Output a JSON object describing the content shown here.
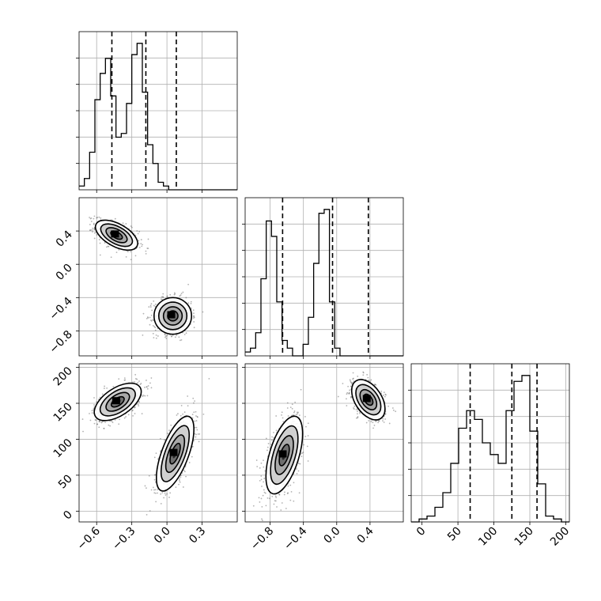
{
  "chart_data": {
    "type": "corner",
    "grid": true,
    "parameters": [
      {
        "range": [
          -0.75,
          0.6
        ],
        "ticks": [
          "−0.6",
          "−0.3",
          "0.0",
          "0.3"
        ],
        "tick_values": [
          -0.6,
          -0.3,
          0.0,
          0.3
        ],
        "quantiles": [
          -0.47,
          -0.18,
          0.08
        ],
        "hist": {
          "bin_start": -0.75,
          "bin_width": 0.045,
          "counts": [
            1,
            3,
            10,
            24,
            31,
            35,
            25,
            14,
            15,
            23,
            36,
            39,
            26,
            12,
            7,
            2,
            1,
            0,
            0,
            0,
            0,
            0,
            0,
            0,
            0,
            0,
            0,
            0,
            0,
            0
          ]
        }
      },
      {
        "range": [
          -1.1,
          0.8
        ],
        "ticks": [
          "−0.8",
          "−0.4",
          "0.0",
          "0.4"
        ],
        "tick_values": [
          -0.8,
          -0.4,
          0.0,
          0.4
        ],
        "quantiles": [
          -0.65,
          -0.05,
          0.38
        ],
        "hist": {
          "bin_start": -1.1,
          "bin_width": 0.0633,
          "counts": [
            1,
            2,
            6,
            20,
            35,
            31,
            14,
            4,
            2,
            0,
            0,
            3,
            10,
            24,
            37,
            38,
            14,
            2,
            0,
            0,
            0,
            0,
            0,
            0,
            0,
            0,
            0,
            0,
            0,
            0
          ]
        }
      },
      {
        "range": [
          -15,
          205
        ],
        "ticks": [
          "0",
          "50",
          "100",
          "150",
          "200"
        ],
        "tick_values": [
          0,
          50,
          100,
          150,
          200
        ],
        "quantiles": [
          67,
          125,
          160
        ],
        "hist": {
          "bin_start": -15,
          "bin_width": 11,
          "counts": [
            0,
            1,
            2,
            5,
            10,
            20,
            32,
            38,
            35,
            27,
            23,
            20,
            38,
            48,
            50,
            31,
            13,
            2,
            1,
            0
          ]
        }
      }
    ],
    "pairs": [
      {
        "x": 0,
        "y": 1,
        "clusters": [
          {
            "mx": -0.43,
            "my": 0.35,
            "sx": 0.09,
            "sy": 0.09,
            "rho": -0.55,
            "n": 700
          },
          {
            "mx": 0.05,
            "my": -0.62,
            "sx": 0.08,
            "sy": 0.11,
            "rho": 0.0,
            "n": 700
          }
        ]
      },
      {
        "x": 0,
        "y": 2,
        "clusters": [
          {
            "mx": -0.42,
            "my": 152,
            "sx": 0.1,
            "sy": 13,
            "rho": 0.55,
            "n": 700
          },
          {
            "mx": 0.07,
            "my": 80,
            "sx": 0.08,
            "sy": 26,
            "rho": 0.65,
            "n": 700
          }
        ]
      },
      {
        "x": 1,
        "y": 2,
        "clusters": [
          {
            "mx": -0.63,
            "my": 78,
            "sx": 0.11,
            "sy": 27,
            "rho": 0.55,
            "n": 700
          },
          {
            "mx": 0.38,
            "my": 155,
            "sx": 0.1,
            "sy": 14,
            "rho": -0.45,
            "n": 700
          }
        ]
      }
    ]
  }
}
